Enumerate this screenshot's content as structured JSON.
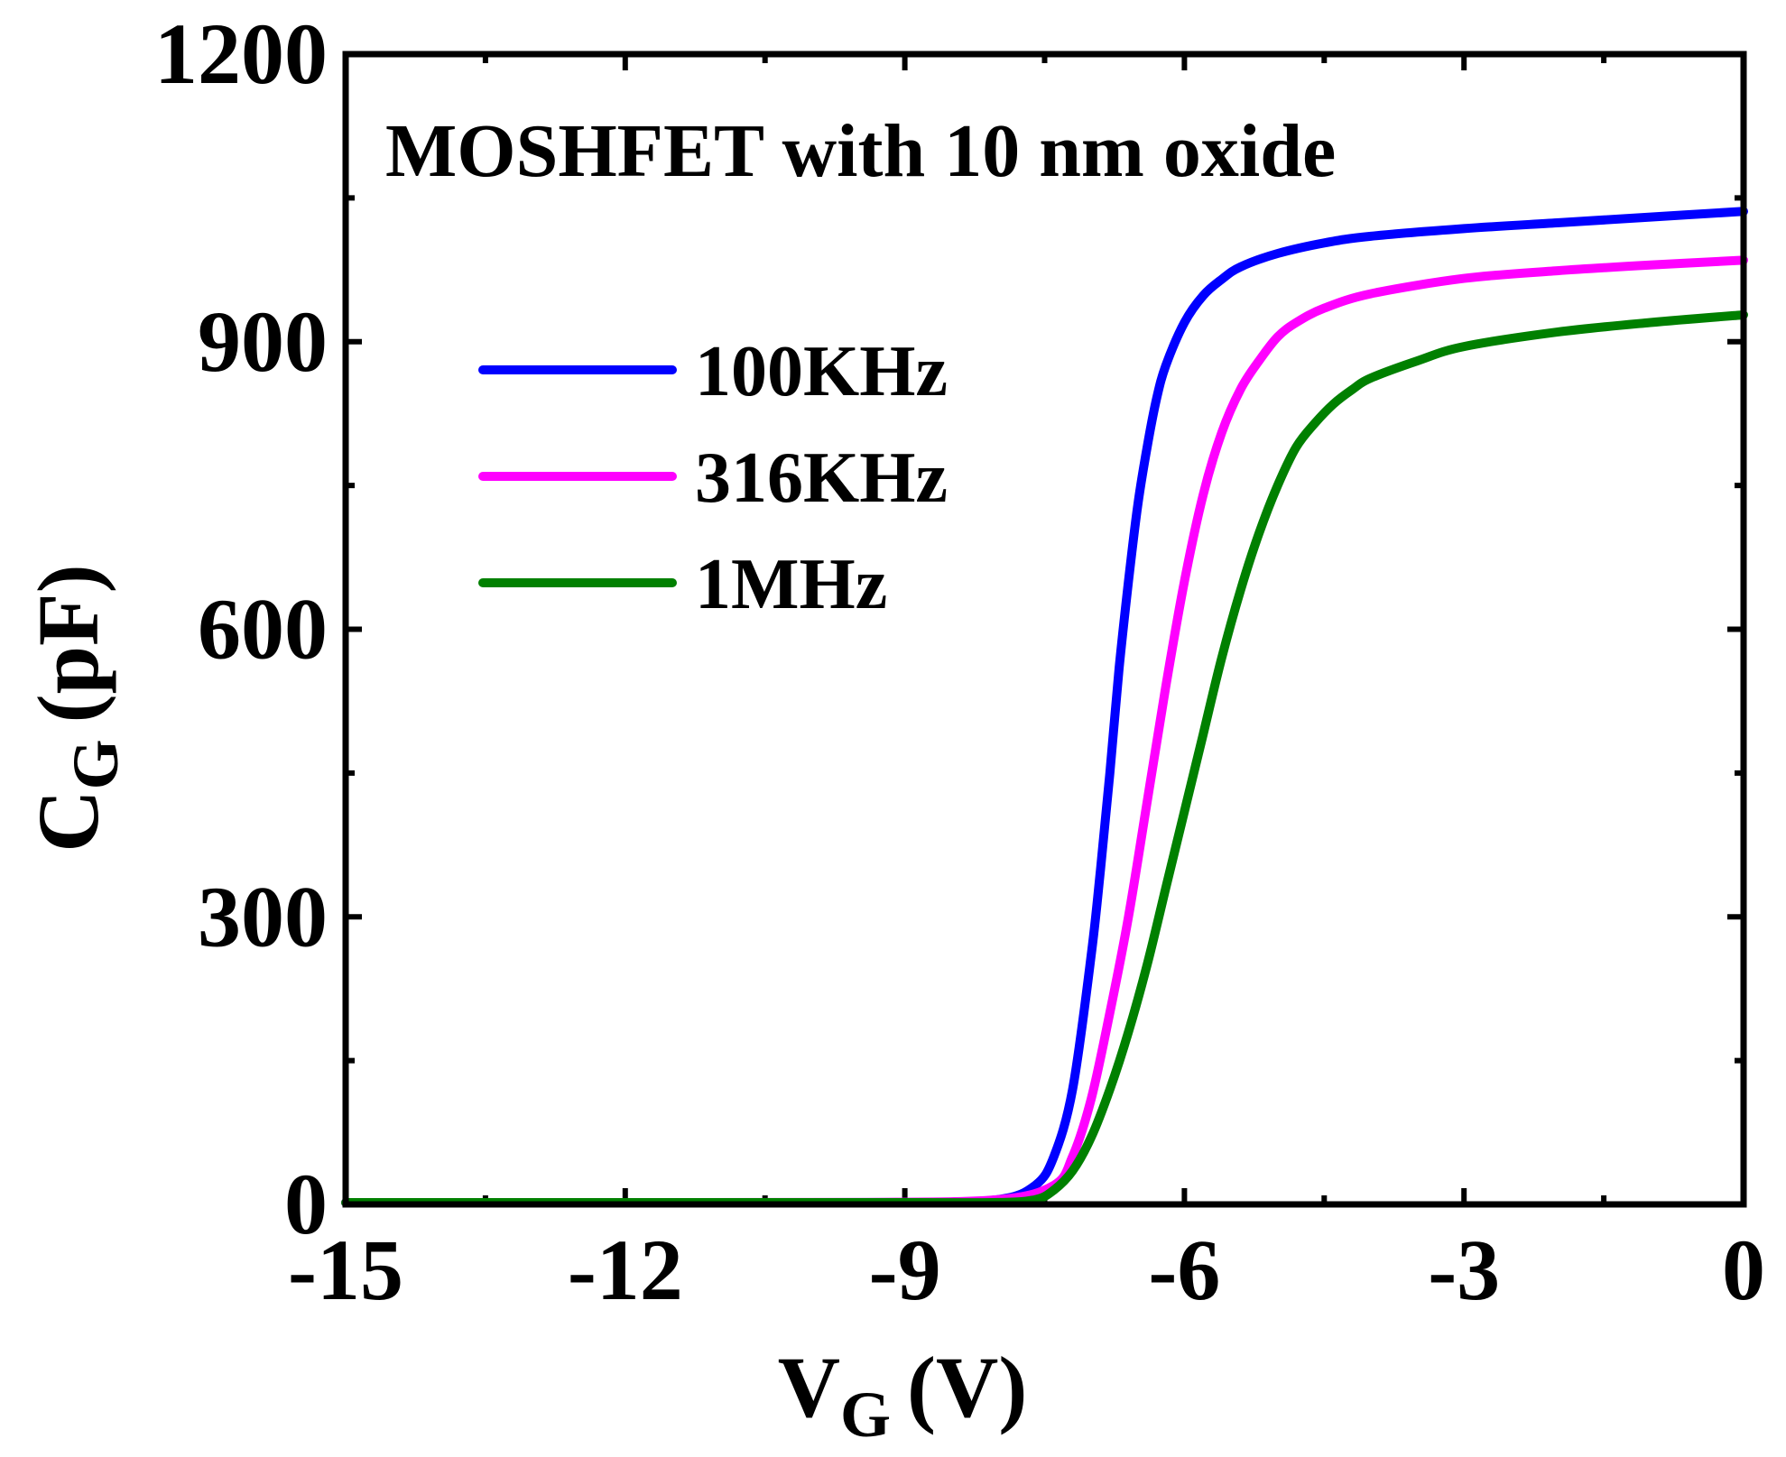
{
  "chart_data": {
    "type": "line",
    "title": "MOSHFET with 10 nm oxide",
    "xlabel": {
      "main": "V",
      "sub": "G",
      "unit": "(V)"
    },
    "ylabel": {
      "main": "C",
      "sub": "G",
      "unit": "(pF)"
    },
    "xlim": [
      -15,
      0
    ],
    "ylim": [
      0,
      1200
    ],
    "xticks": [
      -15,
      -12,
      -9,
      -6,
      -3,
      0
    ],
    "yticks": [
      0,
      300,
      600,
      900,
      1200
    ],
    "xtick_labels": [
      "-15",
      "-12",
      "-9",
      "-6",
      "-3",
      "0"
    ],
    "ytick_labels": [
      "0",
      "300",
      "600",
      "900",
      "1200"
    ],
    "legend_position": "upper-left",
    "series": [
      {
        "name": "100KHz",
        "color": "#0000ff",
        "x": [
          -15,
          -12,
          -9,
          -8,
          -7.6,
          -7.4,
          -7.2,
          -7.0,
          -6.9,
          -6.8,
          -6.7,
          -6.6,
          -6.5,
          -6.4,
          -6.3,
          -6.2,
          -6.0,
          -5.8,
          -5.6,
          -5.4,
          -5.0,
          -4.5,
          -4.0,
          -3.0,
          -2.0,
          -1.0,
          0
        ],
        "y": [
          0,
          0,
          2,
          5,
          20,
          50,
          120,
          260,
          350,
          450,
          560,
          650,
          730,
          790,
          840,
          875,
          920,
          948,
          965,
          978,
          992,
          1003,
          1010,
          1018,
          1024,
          1030,
          1036
        ]
      },
      {
        "name": "316KHz",
        "color": "#ff00ff",
        "x": [
          -15,
          -12,
          -9.5,
          -8,
          -7.4,
          -7.2,
          -7.0,
          -6.8,
          -6.6,
          -6.4,
          -6.2,
          -6.0,
          -5.8,
          -5.6,
          -5.4,
          -5.2,
          -5.0,
          -4.8,
          -4.5,
          -4.0,
          -3.0,
          -2.0,
          -1.0,
          0
        ],
        "y": [
          0,
          0,
          2,
          5,
          20,
          50,
          110,
          200,
          300,
          420,
          540,
          650,
          740,
          805,
          850,
          880,
          905,
          920,
          935,
          950,
          966,
          974,
          980,
          985
        ]
      },
      {
        "name": "1MHz",
        "color": "#008000",
        "x": [
          -15,
          -12,
          -9,
          -8,
          -7.6,
          -7.4,
          -7.2,
          -7.0,
          -6.8,
          -6.6,
          -6.4,
          -6.2,
          -6.0,
          -5.8,
          -5.6,
          -5.4,
          -5.2,
          -5.0,
          -4.8,
          -4.6,
          -4.4,
          -4.2,
          -4.0,
          -3.5,
          -3.0,
          -2.0,
          -1.0,
          0
        ],
        "y": [
          0,
          0,
          0,
          2,
          5,
          15,
          35,
          70,
          120,
          180,
          250,
          330,
          410,
          490,
          570,
          640,
          700,
          750,
          790,
          815,
          835,
          850,
          862,
          880,
          895,
          910,
          920,
          928
        ]
      }
    ]
  }
}
